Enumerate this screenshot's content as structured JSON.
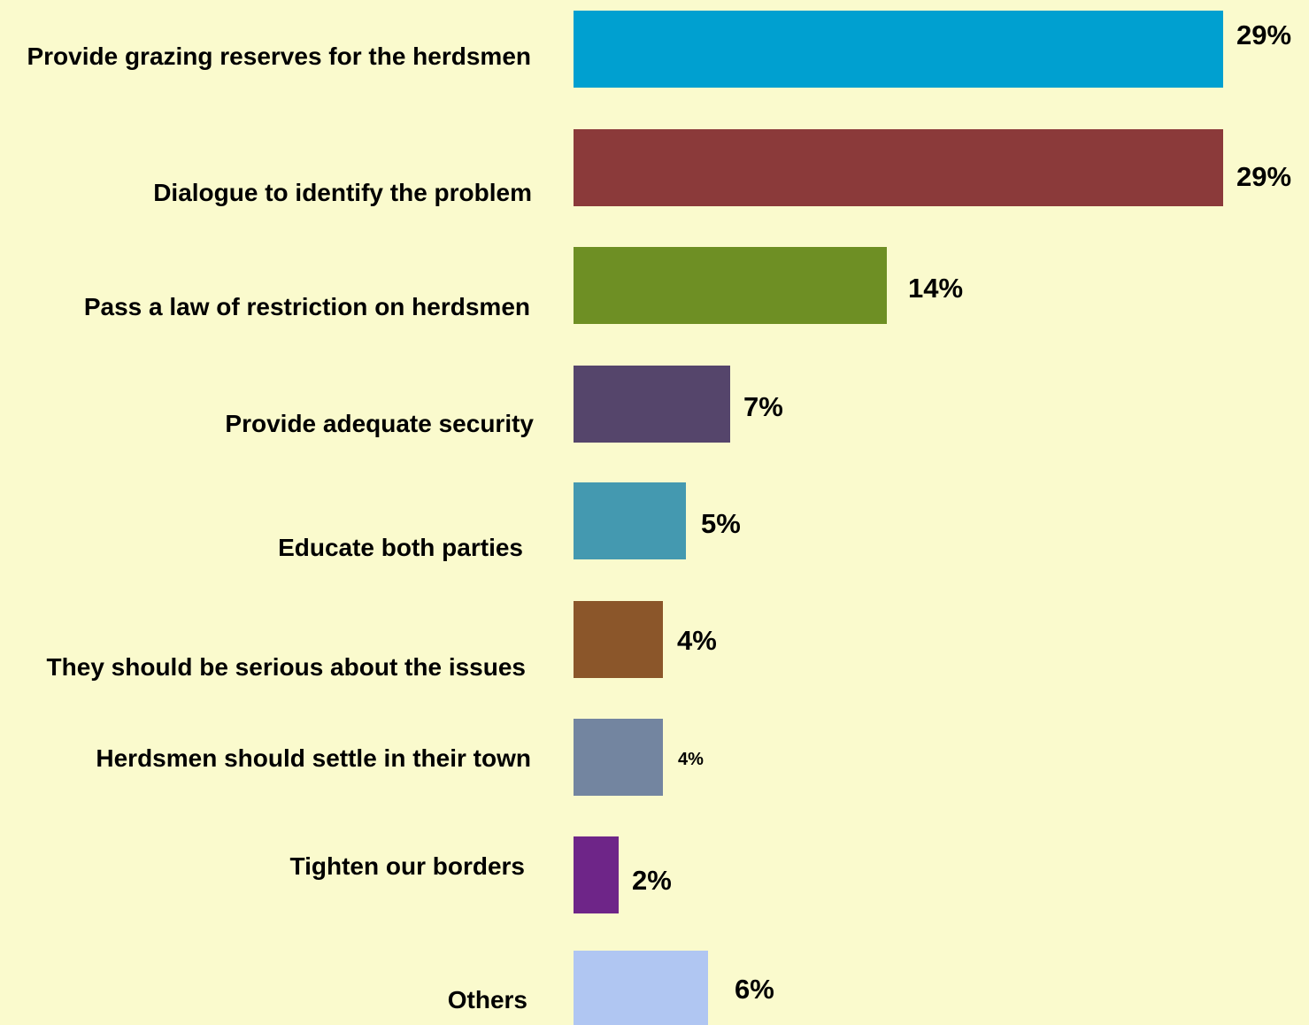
{
  "chart_data": {
    "type": "bar",
    "orientation": "horizontal",
    "categories": [
      "Provide grazing reserves for the herdsmen",
      "Dialogue to identify the problem",
      "Pass a law of restriction on herdsmen",
      "Provide adequate security",
      "Educate both parties",
      "They should be serious about the issues",
      "Herdsmen should settle in their town",
      "Tighten our borders",
      "Others"
    ],
    "values": [
      29,
      29,
      14,
      7,
      5,
      4,
      4,
      2,
      6
    ],
    "value_labels": [
      "29%",
      "29%",
      "14%",
      "7%",
      "5%",
      "4%",
      "4%",
      "2%",
      "6%"
    ],
    "colors": [
      "#00A0D0",
      "#8B3A3A",
      "#6E8F24",
      "#55456B",
      "#4499B0",
      "#8B562A",
      "#7385A0",
      "#6E2588",
      "#B0C6F2"
    ],
    "background": "#FAFACD",
    "title": "",
    "xlabel": "",
    "ylabel": "",
    "grid": false,
    "legend": "none"
  }
}
